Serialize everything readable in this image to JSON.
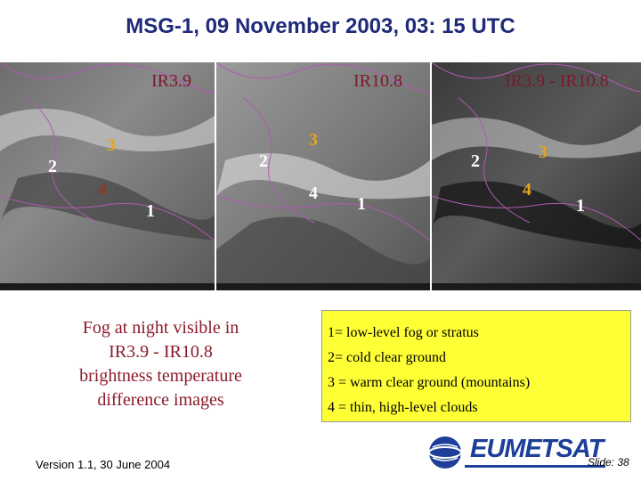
{
  "title": "MSG-1, 09 November 2003, 03: 15 UTC",
  "panels": [
    {
      "label": "IR3.9",
      "numbers": [
        "3",
        "2",
        "4",
        "1"
      ]
    },
    {
      "label": "IR10.8",
      "numbers": [
        "2",
        "3",
        "4",
        "1"
      ]
    },
    {
      "label": "IR3.9 - IR10.8",
      "numbers": [
        "2",
        "3",
        "4",
        "1"
      ]
    }
  ],
  "caption": [
    "Fog at night visible in",
    "IR3.9 - IR10.8",
    "brightness temperature",
    "difference images"
  ],
  "legend": [
    "1= low-level fog or stratus",
    "2= cold clear ground",
    "3 = warm clear ground (mountains)",
    "4 = thin, high-level clouds"
  ],
  "footer": {
    "version": "Version 1.1, 30 June 2004",
    "logo_text": "EUMETSAT",
    "slide": "Slide: 38"
  },
  "colors": {
    "title": "#1f2a7a",
    "caption": "#8a1a2a",
    "legend_bg": "#ffff36",
    "logo_blue": "#1d3f9a"
  }
}
